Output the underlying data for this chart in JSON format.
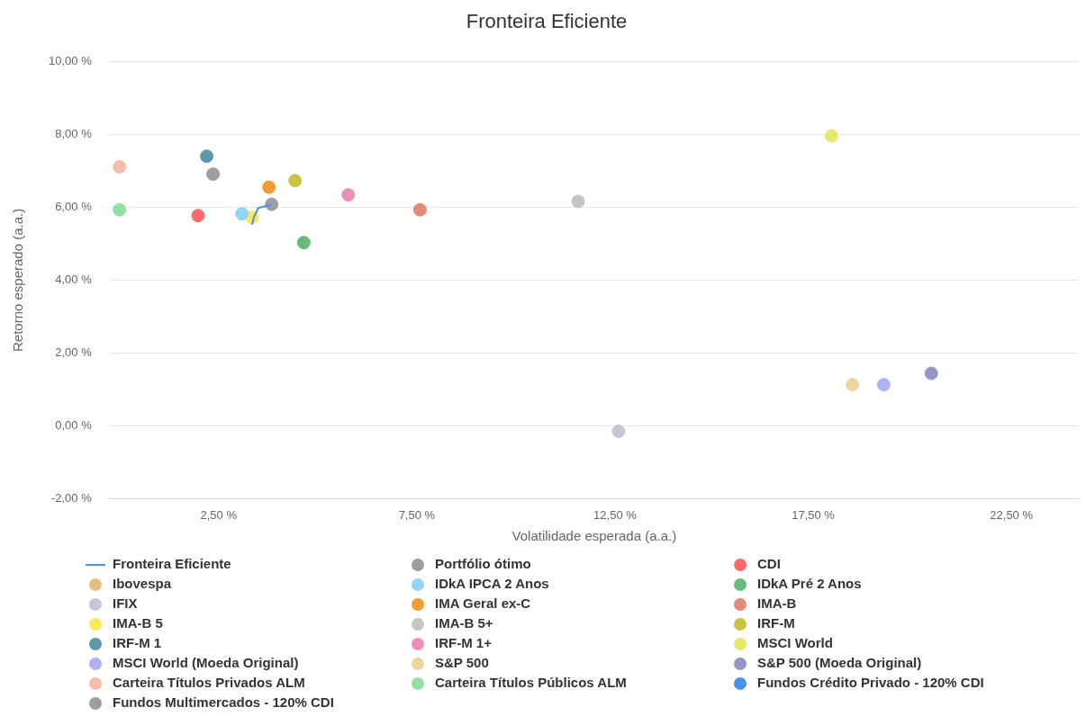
{
  "chart_data": {
    "type": "scatter",
    "title": "Fronteira Eficiente",
    "xlabel": "Volatilidade esperada (a.a.)",
    "ylabel": "Retorno esperado (a.a.)",
    "xlim": [
      -0.25,
      24.2
    ],
    "ylim": [
      -2,
      10
    ],
    "xticks": [
      {
        "value": 2.5,
        "label": "2,50 %"
      },
      {
        "value": 7.5,
        "label": "7,50 %"
      },
      {
        "value": 12.5,
        "label": "12,50 %"
      },
      {
        "value": 17.5,
        "label": "17,50 %"
      },
      {
        "value": 22.5,
        "label": "22,50 %"
      }
    ],
    "yticks": [
      {
        "value": -2,
        "label": "-2,00 %"
      },
      {
        "value": 0,
        "label": "0,00 %"
      },
      {
        "value": 2,
        "label": "2,00 %"
      },
      {
        "value": 4,
        "label": "4,00 %"
      },
      {
        "value": 6,
        "label": "6,00 %"
      },
      {
        "value": 8,
        "label": "8,00 %"
      },
      {
        "value": 10,
        "label": "10,00 %"
      }
    ],
    "grid": "y",
    "legend": "bottom",
    "marker": "circle",
    "series": [
      {
        "name": "Fronteira Eficiente",
        "type": "line",
        "marker": "none",
        "color": "#4e8fe8",
        "x": [
          3.34,
          3.4,
          3.5,
          3.84
        ],
        "values": [
          5.52,
          5.75,
          5.98,
          6.08
        ]
      },
      {
        "name": "Portfólio ótimo",
        "color": "#9e9e9e",
        "x": [
          3.84
        ],
        "values": [
          6.08
        ]
      },
      {
        "name": "CDI",
        "color": "#ff6b6b",
        "x": [
          1.98
        ],
        "values": [
          5.77
        ]
      },
      {
        "name": "Ibovespa",
        "color": "#e9bf7f"
      },
      {
        "name": "IDkA IPCA 2 Anos",
        "color": "#91d4f5",
        "x": [
          3.09
        ],
        "values": [
          5.82
        ]
      },
      {
        "name": "IDkA Pré 2 Anos",
        "color": "#66bb7a",
        "x": [
          4.65
        ],
        "values": [
          5.03
        ]
      },
      {
        "name": "IFIX",
        "color": "#c5c6d8",
        "x": [
          12.59
        ],
        "values": [
          -0.15
        ]
      },
      {
        "name": "IMA Geral ex-C",
        "color": "#f49c34",
        "x": [
          3.77
        ],
        "values": [
          6.55
        ]
      },
      {
        "name": "IMA-B",
        "color": "#e58a78",
        "x": [
          7.58
        ],
        "values": [
          5.93
        ]
      },
      {
        "name": "IMA-B 5",
        "color": "#f9eb5a",
        "x": [
          3.34
        ],
        "values": [
          5.72
        ]
      },
      {
        "name": "IMA-B 5+",
        "color": "#c5c5c5",
        "x": [
          11.57
        ],
        "values": [
          6.16
        ]
      },
      {
        "name": "IRF-M",
        "color": "#c9c43f",
        "x": [
          4.43
        ],
        "values": [
          6.73
        ]
      },
      {
        "name": "IRF-M 1",
        "color": "#5f98a8",
        "x": [
          2.2
        ],
        "values": [
          7.4
        ]
      },
      {
        "name": "IRF-M 1+",
        "color": "#ec8fb8",
        "x": [
          5.77
        ],
        "values": [
          6.34
        ]
      },
      {
        "name": "MSCI World",
        "color": "#e5e86b",
        "x": [
          17.96
        ],
        "values": [
          7.96
        ]
      },
      {
        "name": "MSCI World (Moeda Original)",
        "color": "#b0b0f5",
        "x": [
          19.28
        ],
        "values": [
          1.13
        ]
      },
      {
        "name": "S&P 500",
        "color": "#ebd59e",
        "x": [
          18.49
        ],
        "values": [
          1.13
        ]
      },
      {
        "name": "S&P 500 (Moeda Original)",
        "color": "#9596c4",
        "x": [
          20.48
        ],
        "values": [
          1.44
        ]
      },
      {
        "name": "Carteira Títulos Privados ALM",
        "color": "#f9bcaa",
        "x": [
          0.0
        ],
        "values": [
          7.11
        ]
      },
      {
        "name": "Carteira Títulos Públicos ALM",
        "color": "#93e0a3",
        "x": [
          0.0
        ],
        "values": [
          5.93
        ]
      },
      {
        "name": "Fundos Crédito Privado - 120% CDI",
        "color": "#4a8fe8"
      },
      {
        "name": "Fundos Multimercados - 120% CDI",
        "color": "#9e9e9e",
        "x": [
          2.36
        ],
        "values": [
          6.91
        ]
      }
    ]
  }
}
